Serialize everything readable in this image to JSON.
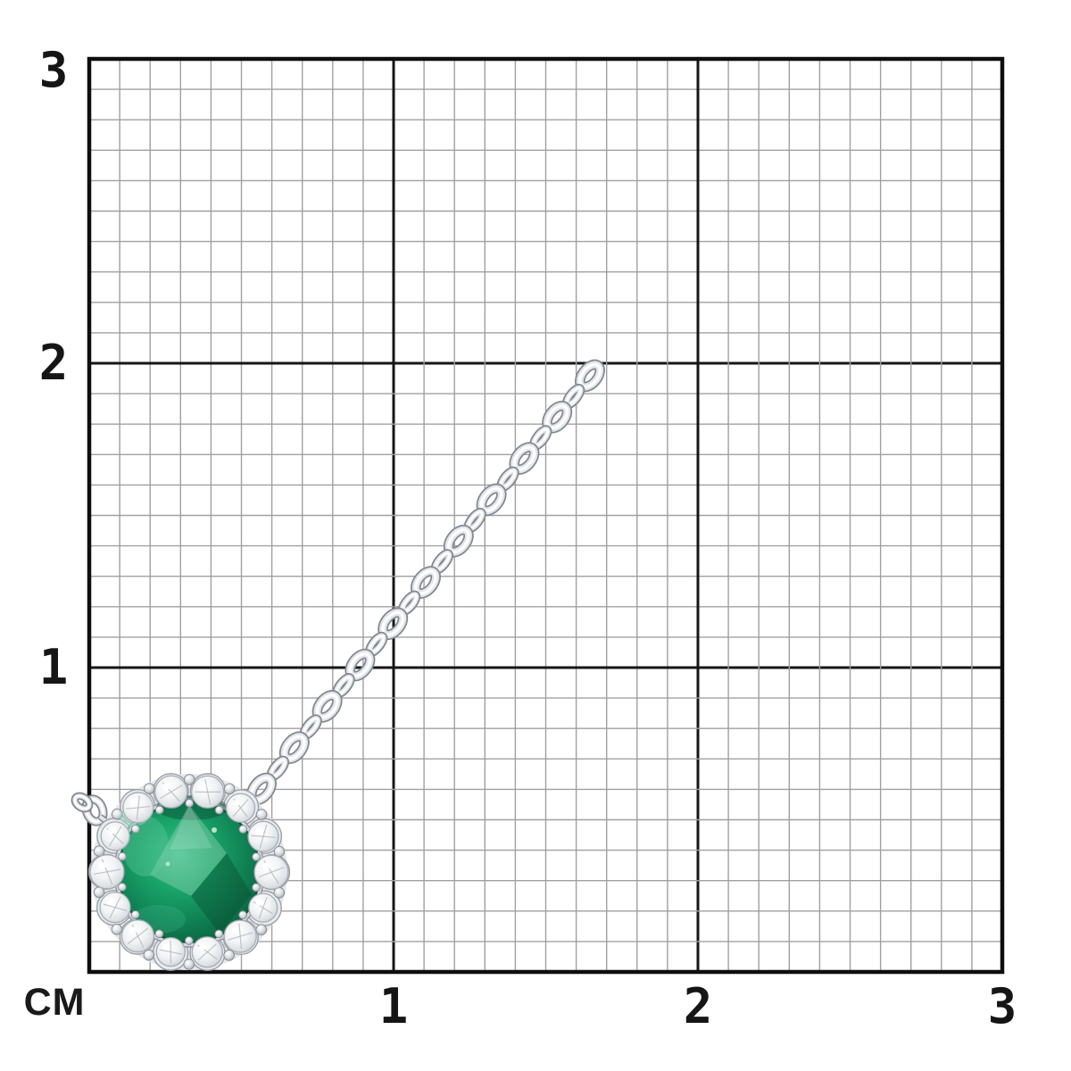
{
  "ruler": {
    "unit_label": "CM",
    "cm_max": 3,
    "minor_divisions_per_cm": 10,
    "y_axis_labels": [
      {
        "text": "3",
        "cm": 3
      },
      {
        "text": "2",
        "cm": 2
      },
      {
        "text": "1",
        "cm": 1
      }
    ],
    "x_axis_labels": [
      {
        "text": "1",
        "cm": 1
      },
      {
        "text": "2",
        "cm": 2
      },
      {
        "text": "3",
        "cm": 3
      }
    ]
  },
  "grid": {
    "background": "#ffffff",
    "minor_color": "#a0a0a0",
    "major_color": "#161616",
    "border_color": "#0e0e0e"
  },
  "item": {
    "name": "emerald halo pendant with cable chain",
    "gem": "emerald",
    "gem_color": "#109a60",
    "metal_color": "#e3e6ea",
    "metal_outline": "#82888f",
    "halo_diamond_count": 14
  }
}
